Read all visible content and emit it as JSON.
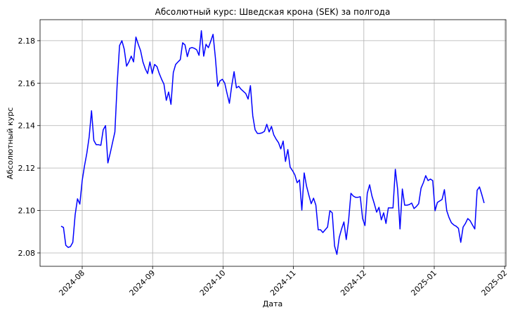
{
  "chart_data": {
    "type": "line",
    "title": "Абсолютный курс: Шведская крона (SEK) за полгода",
    "x_label": "Дата",
    "y_label": "Абсолютный курс",
    "color": "#0000ff",
    "label_color": "#0000cc",
    "grid": true,
    "ylim": [
      2.0737,
      2.1899
    ],
    "yticks": [
      2.08,
      {
        "value": 2.1,
        "label": "2.10"
      },
      2.12,
      2.14,
      2.16,
      2.18
    ],
    "xticks": [
      "2024-08",
      "2024-09",
      "2024-10",
      "2024-11",
      "2024-12",
      "2025-01",
      "2025-02"
    ],
    "values": [
      2.0926,
      2.092,
      2.0836,
      2.0826,
      2.083,
      2.085,
      2.098,
      2.1055,
      2.103,
      2.114,
      2.121,
      2.127,
      2.1347,
      2.147,
      2.133,
      2.131,
      2.131,
      2.1307,
      2.138,
      2.14,
      2.1224,
      2.127,
      2.132,
      2.137,
      2.16,
      2.1777,
      2.18,
      2.176,
      2.168,
      2.17,
      2.1727,
      2.17,
      2.1817,
      2.1783,
      2.1753,
      2.17,
      2.1668,
      2.1645,
      2.17,
      2.1645,
      2.1688,
      2.1678,
      2.1645,
      2.1618,
      2.1595,
      2.1519,
      2.1558,
      2.15,
      2.165,
      2.1688,
      2.17,
      2.1711,
      2.179,
      2.178,
      2.1725,
      2.1764,
      2.1768,
      2.1764,
      2.1757,
      2.1731,
      2.1847,
      2.1727,
      2.1783,
      2.1767,
      2.1797,
      2.183,
      2.172,
      2.1585,
      2.1611,
      2.1618,
      2.16,
      2.1551,
      2.1505,
      2.1588,
      2.1654,
      2.1578,
      2.1585,
      2.1571,
      2.1561,
      2.1551,
      2.1525,
      2.1588,
      2.1446,
      2.138,
      2.1363,
      2.1363,
      2.1366,
      2.1373,
      2.1406,
      2.137,
      2.1396,
      2.1356,
      2.1336,
      2.132,
      2.129,
      2.1327,
      2.1231,
      2.1287,
      2.1204,
      2.1188,
      2.1168,
      2.1131,
      2.1144,
      2.1002,
      2.1177,
      2.1115,
      2.1072,
      2.1032,
      2.1058,
      2.1025,
      2.0909,
      2.0909,
      2.0896,
      2.0909,
      2.0922,
      2.0999,
      2.0989,
      2.0833,
      2.0793,
      2.0873,
      2.0913,
      2.0946,
      2.0863,
      2.0952,
      2.1081,
      2.1068,
      2.1062,
      2.1062,
      2.1065,
      2.0962,
      2.0929,
      2.1081,
      2.1121,
      2.1068,
      2.1032,
      2.0992,
      2.1015,
      2.0956,
      2.0989,
      2.0939,
      2.1012,
      2.1012,
      2.1012,
      2.1194,
      2.1098,
      2.0913,
      2.1101,
      2.1025,
      2.1025,
      2.1028,
      2.1035,
      2.1009,
      2.1019,
      2.1032,
      2.1105,
      2.1131,
      2.1164,
      2.1141,
      2.1148,
      2.1141,
      2.0999,
      2.1038,
      2.1045,
      2.1052,
      2.1098,
      2.0999,
      2.0966,
      2.0942,
      2.0932,
      2.0926,
      2.0916,
      2.085,
      2.0922,
      2.0939,
      2.0962,
      2.0952,
      2.0932,
      2.0913,
      2.1095,
      2.1111,
      2.1075,
      2.1035
    ]
  }
}
